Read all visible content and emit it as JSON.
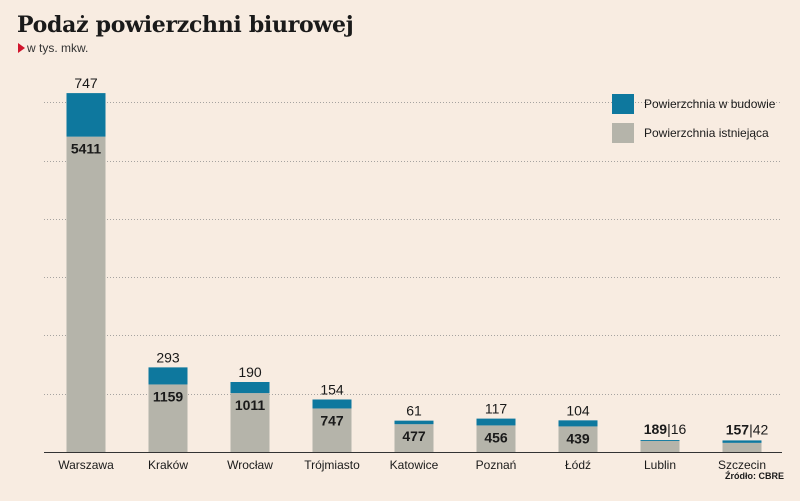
{
  "header": {
    "title": "Podaż powierzchni biurowej",
    "subtitle": "w tys. mkw."
  },
  "source": "Źródło: CBRE",
  "colors": {
    "background": "#f8ece1",
    "under_construction": "#0e789e",
    "existing": "#b5b4aa",
    "accent": "#d1152c"
  },
  "chart_data": {
    "type": "bar",
    "stacked": true,
    "title": "Podaż powierzchni biurowej",
    "subtitle": "w tys. mkw.",
    "categories": [
      "Warszawa",
      "Kraków",
      "Wrocław",
      "Trójmiasto",
      "Katowice",
      "Poznań",
      "Łódź",
      "Lublin",
      "Szczecin"
    ],
    "series": [
      {
        "name": "Powierzchnia istniejąca",
        "values": [
          5411,
          1159,
          1011,
          747,
          477,
          456,
          439,
          189,
          157
        ]
      },
      {
        "name": "Powierzchnia w budowie",
        "values": [
          747,
          293,
          190,
          154,
          61,
          117,
          104,
          16,
          42
        ]
      }
    ],
    "inline_label_categories": [
      "Lublin",
      "Szczecin"
    ],
    "ylim": [
      0,
      6400
    ],
    "yticks": [
      0,
      1000,
      2000,
      3000,
      4000,
      5000,
      6000
    ],
    "grid": true,
    "legend": "top-right",
    "xlabel": "",
    "ylabel": ""
  }
}
